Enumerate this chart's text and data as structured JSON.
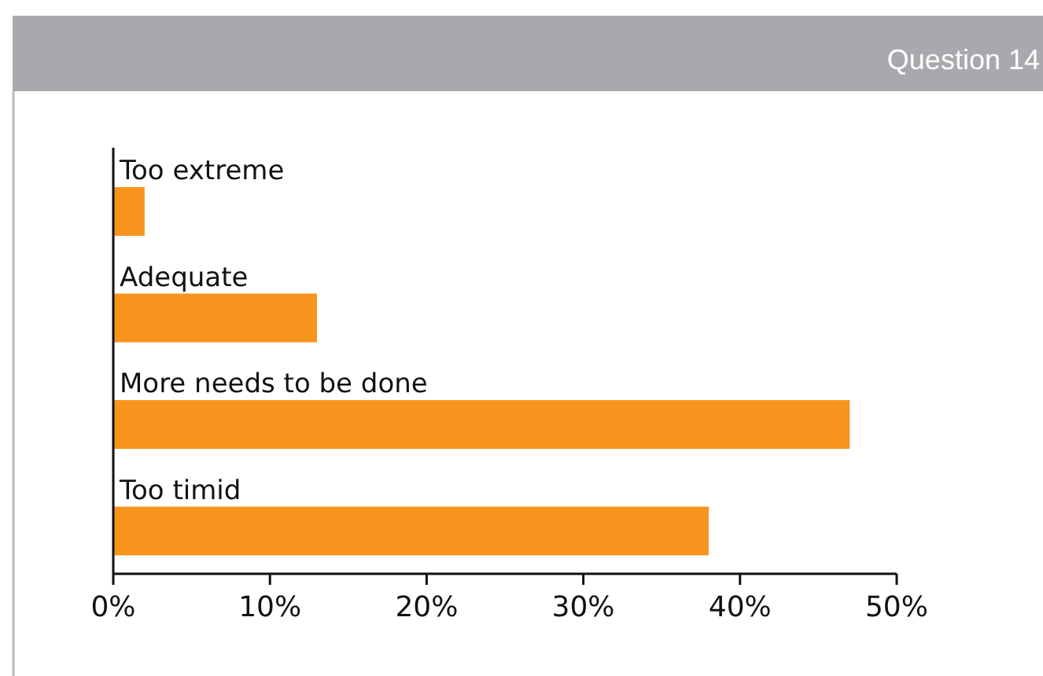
{
  "chart_data": {
    "type": "bar",
    "title": "Question 14",
    "orientation": "horizontal",
    "categories": [
      "Too extreme",
      "Adequate",
      "More needs to be done",
      "Too timid"
    ],
    "values": [
      2,
      13,
      47,
      38
    ],
    "color": "#f7941d",
    "xlim": [
      0,
      50
    ],
    "xticks": [
      {
        "value": 0,
        "label": "0%"
      },
      {
        "value": 10,
        "label": "10%"
      },
      {
        "value": 20,
        "label": "20%"
      },
      {
        "value": 30,
        "label": "30%"
      },
      {
        "value": 40,
        "label": "40%"
      },
      {
        "value": 50,
        "label": "50%"
      }
    ],
    "grid": false
  }
}
